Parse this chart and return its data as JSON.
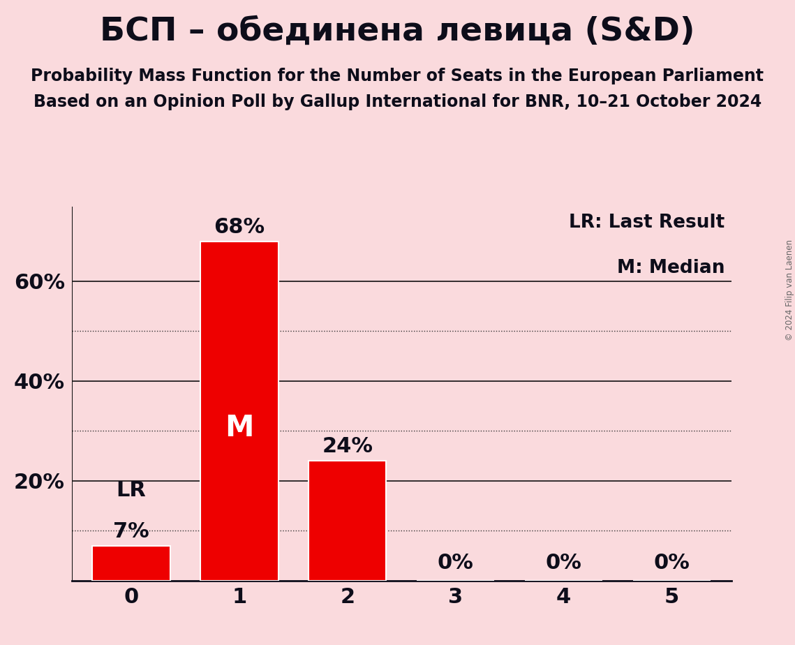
{
  "title": "БСП – обединена левица (S&D)",
  "subtitle1": "Probability Mass Function for the Number of Seats in the European Parliament",
  "subtitle2": "Based on an Opinion Poll by Gallup International for BNR, 10–21 October 2024",
  "copyright": "© 2024 Filip van Laenen",
  "categories": [
    0,
    1,
    2,
    3,
    4,
    5
  ],
  "values": [
    7,
    68,
    24,
    0,
    0,
    0
  ],
  "bar_color": "#ee0000",
  "background_color": "#fadadd",
  "label_color_dark": "#0d0d1a",
  "label_color_white": "#ffffff",
  "lr_bar": 0,
  "median_bar": 1,
  "yticks_solid": [
    20,
    40,
    60
  ],
  "yticks_dotted": [
    10,
    30,
    50
  ],
  "ylim": [
    0,
    75
  ],
  "legend_lr": "LR: Last Result",
  "legend_m": "M: Median",
  "title_fontsize": 34,
  "subtitle_fontsize": 17,
  "axis_fontsize": 22,
  "bar_label_fontsize": 22,
  "legend_fontsize": 19
}
